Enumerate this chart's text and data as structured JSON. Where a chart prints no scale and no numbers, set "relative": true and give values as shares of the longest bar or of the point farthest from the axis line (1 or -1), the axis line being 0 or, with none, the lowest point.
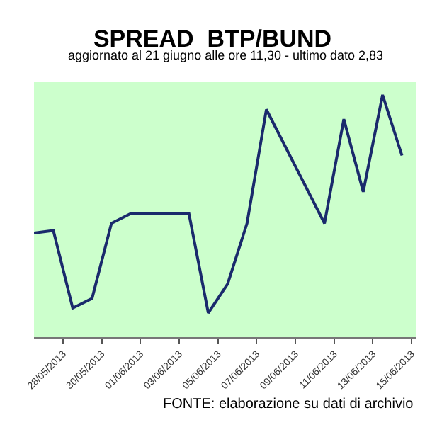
{
  "chart_data": {
    "type": "line",
    "title": "SPREAD  BTP/BUND",
    "subtitle": "aggiornato al 21 giugno alle ore 11,30 - ultimo dato 2,83",
    "annotations": [
      "FONTE: elaborazione su dati di archivio"
    ],
    "relative": true,
    "x": [
      "2013-05-26T12:00",
      "2013-05-27T12:00",
      "2013-05-28T12:00",
      "2013-05-29T12:00",
      "2013-05-30T12:00",
      "2013-05-31T12:00",
      "2013-06-03T12:00",
      "2013-06-04T12:00",
      "2013-06-05T12:00",
      "2013-06-06T12:00",
      "2013-06-07T12:00",
      "2013-06-10T12:00",
      "2013-06-11T12:00",
      "2013-06-12T12:00",
      "2013-06-13T12:00",
      "2013-06-14T12:00"
    ],
    "series": [
      {
        "color": "#1a2a6c",
        "values": [
          0.43,
          0.44,
          0.12,
          0.16,
          0.47,
          0.51,
          0.51,
          0.1,
          0.22,
          0.47,
          0.94,
          0.47,
          0.9,
          0.6,
          1,
          0.75
        ]
      }
    ],
    "xlim": [
      "2013-05-26T12:00",
      "2013-06-15T06:00"
    ],
    "xticks": [
      {
        "value": "2013-05-28",
        "label": "28/05/2013"
      },
      {
        "value": "2013-05-30",
        "label": "30/05/2013"
      },
      {
        "value": "2013-06-01",
        "label": "01/06/2013"
      },
      {
        "value": "2013-06-03",
        "label": "03/06/2013"
      },
      {
        "value": "2013-06-05",
        "label": "05/06/2013"
      },
      {
        "value": "2013-06-07",
        "label": "07/06/2013"
      },
      {
        "value": "2013-06-09",
        "label": "09/06/2013"
      },
      {
        "value": "2013-06-11",
        "label": "11/06/2013"
      },
      {
        "value": "2013-06-13",
        "label": "13/06/2013"
      },
      {
        "value": "2013-06-15",
        "label": "15/06/2013"
      }
    ],
    "marker": "none",
    "line_style": "solid"
  }
}
